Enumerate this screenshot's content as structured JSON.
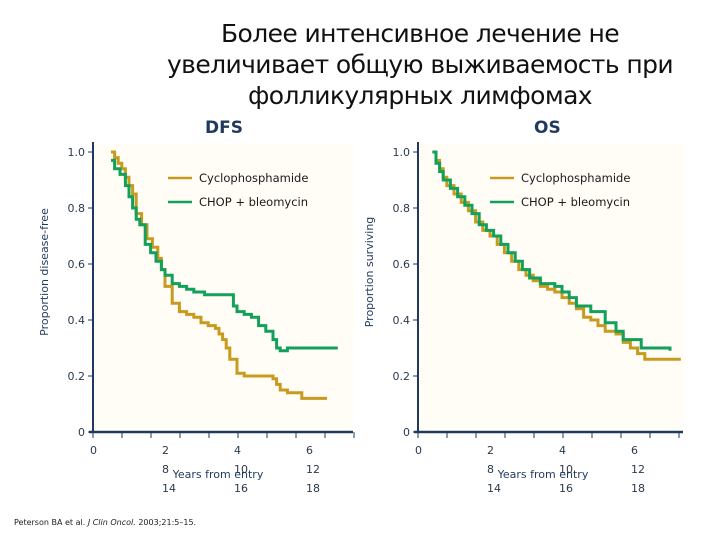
{
  "title": {
    "line1": "Более интенсивное лечение не",
    "line2": "увеличивает общую выживаемость при",
    "line3": "фолликулярных лимфомах"
  },
  "colors": {
    "cyclophosphamide": "#c89a1e",
    "chop_bleomycin": "#12a05a",
    "axis": "#1f3a5c"
  },
  "citation": {
    "authors": "Peterson BA et al.",
    "journal": "J Clin Oncol.",
    "details": "2003;21:5–15."
  },
  "chart_data": [
    {
      "type": "line",
      "subtype": "kaplan-meier step",
      "title": "DFS",
      "xlabel": "Years from entry",
      "ylabel": "Proportion disease-free",
      "xlim": [
        0,
        7.2
      ],
      "ylim": [
        0,
        1.0
      ],
      "yticks": [
        "0",
        "0.2",
        "0.4",
        "0.6",
        "0.8",
        "1.0"
      ],
      "xtick_labels_row1": [
        "0",
        "2",
        "4",
        "6"
      ],
      "xtick_labels_row2": [
        "8",
        "10",
        "12"
      ],
      "xtick_labels_row3": [
        "14",
        "16",
        "18"
      ],
      "legend": [
        "Cyclophosphamide",
        "CHOP + bleomycin"
      ],
      "legend_position": "upper right",
      "series": [
        {
          "name": "Cyclophosphamide",
          "x": [
            0.5,
            0.6,
            0.7,
            0.8,
            0.9,
            1.0,
            1.1,
            1.2,
            1.35,
            1.5,
            1.65,
            1.8,
            1.9,
            2.0,
            2.2,
            2.4,
            2.6,
            2.8,
            3.0,
            3.2,
            3.4,
            3.5,
            3.6,
            3.7,
            3.8,
            4.0,
            4.2,
            4.4,
            5.0,
            5.1,
            5.2,
            5.4,
            5.8,
            6.5
          ],
          "y": [
            1.0,
            0.98,
            0.96,
            0.94,
            0.91,
            0.88,
            0.85,
            0.78,
            0.74,
            0.69,
            0.66,
            0.62,
            0.58,
            0.52,
            0.46,
            0.43,
            0.42,
            0.41,
            0.39,
            0.38,
            0.37,
            0.35,
            0.33,
            0.3,
            0.26,
            0.21,
            0.2,
            0.2,
            0.19,
            0.17,
            0.15,
            0.14,
            0.12,
            0.12
          ]
        },
        {
          "name": "CHOP + bleomycin",
          "x": [
            0.5,
            0.6,
            0.75,
            0.9,
            1.0,
            1.1,
            1.2,
            1.3,
            1.45,
            1.6,
            1.75,
            1.9,
            2.0,
            2.2,
            2.4,
            2.6,
            2.8,
            3.1,
            3.5,
            3.8,
            3.9,
            4.0,
            4.2,
            4.4,
            4.6,
            4.8,
            5.0,
            5.1,
            5.2,
            5.4,
            6.8
          ],
          "y": [
            0.97,
            0.94,
            0.92,
            0.88,
            0.84,
            0.8,
            0.76,
            0.74,
            0.67,
            0.64,
            0.61,
            0.58,
            0.56,
            0.53,
            0.52,
            0.51,
            0.5,
            0.49,
            0.49,
            0.49,
            0.45,
            0.43,
            0.42,
            0.41,
            0.38,
            0.36,
            0.33,
            0.3,
            0.29,
            0.3,
            0.3
          ]
        }
      ]
    },
    {
      "type": "line",
      "subtype": "kaplan-meier step",
      "title": "OS",
      "xlabel": "Years from entry",
      "ylabel": "Proportion surviving",
      "xlim": [
        0,
        7.2
      ],
      "ylim": [
        0,
        1.0
      ],
      "yticks": [
        "0",
        "0.2",
        "0.4",
        "0.6",
        "0.8",
        "1.0"
      ],
      "xtick_labels_row1": [
        "0",
        "2",
        "4",
        "6"
      ],
      "xtick_labels_row2": [
        "8",
        "10",
        "12"
      ],
      "xtick_labels_row3": [
        "14",
        "16",
        "18"
      ],
      "legend": [
        "Cyclophosphamide",
        "CHOP + bleomycin"
      ],
      "legend_position": "upper right",
      "series": [
        {
          "name": "Cyclophosphamide",
          "x": [
            0.4,
            0.5,
            0.6,
            0.7,
            0.8,
            1.0,
            1.2,
            1.4,
            1.6,
            1.8,
            2.0,
            2.2,
            2.4,
            2.6,
            2.8,
            3.0,
            3.2,
            3.4,
            3.6,
            3.8,
            4.0,
            4.2,
            4.4,
            4.6,
            4.8,
            5.0,
            5.2,
            5.5,
            5.7,
            5.9,
            6.1,
            6.3,
            7.3
          ],
          "y": [
            1.0,
            0.97,
            0.94,
            0.91,
            0.88,
            0.85,
            0.82,
            0.79,
            0.75,
            0.72,
            0.7,
            0.67,
            0.64,
            0.61,
            0.58,
            0.56,
            0.54,
            0.52,
            0.51,
            0.5,
            0.48,
            0.46,
            0.44,
            0.41,
            0.4,
            0.38,
            0.36,
            0.35,
            0.32,
            0.3,
            0.28,
            0.26,
            0.26
          ]
        },
        {
          "name": "CHOP + bleomycin",
          "x": [
            0.4,
            0.5,
            0.6,
            0.7,
            0.9,
            1.1,
            1.3,
            1.5,
            1.7,
            1.9,
            2.1,
            2.3,
            2.5,
            2.7,
            2.9,
            3.1,
            3.4,
            3.6,
            3.8,
            4.0,
            4.2,
            4.4,
            4.6,
            4.8,
            5.0,
            5.2,
            5.5,
            5.7,
            5.9,
            6.2,
            7.0
          ],
          "y": [
            1.0,
            0.96,
            0.93,
            0.9,
            0.87,
            0.84,
            0.81,
            0.78,
            0.74,
            0.72,
            0.7,
            0.67,
            0.64,
            0.61,
            0.58,
            0.55,
            0.53,
            0.53,
            0.52,
            0.5,
            0.48,
            0.45,
            0.45,
            0.43,
            0.43,
            0.39,
            0.36,
            0.33,
            0.33,
            0.3,
            0.29
          ]
        }
      ]
    }
  ]
}
